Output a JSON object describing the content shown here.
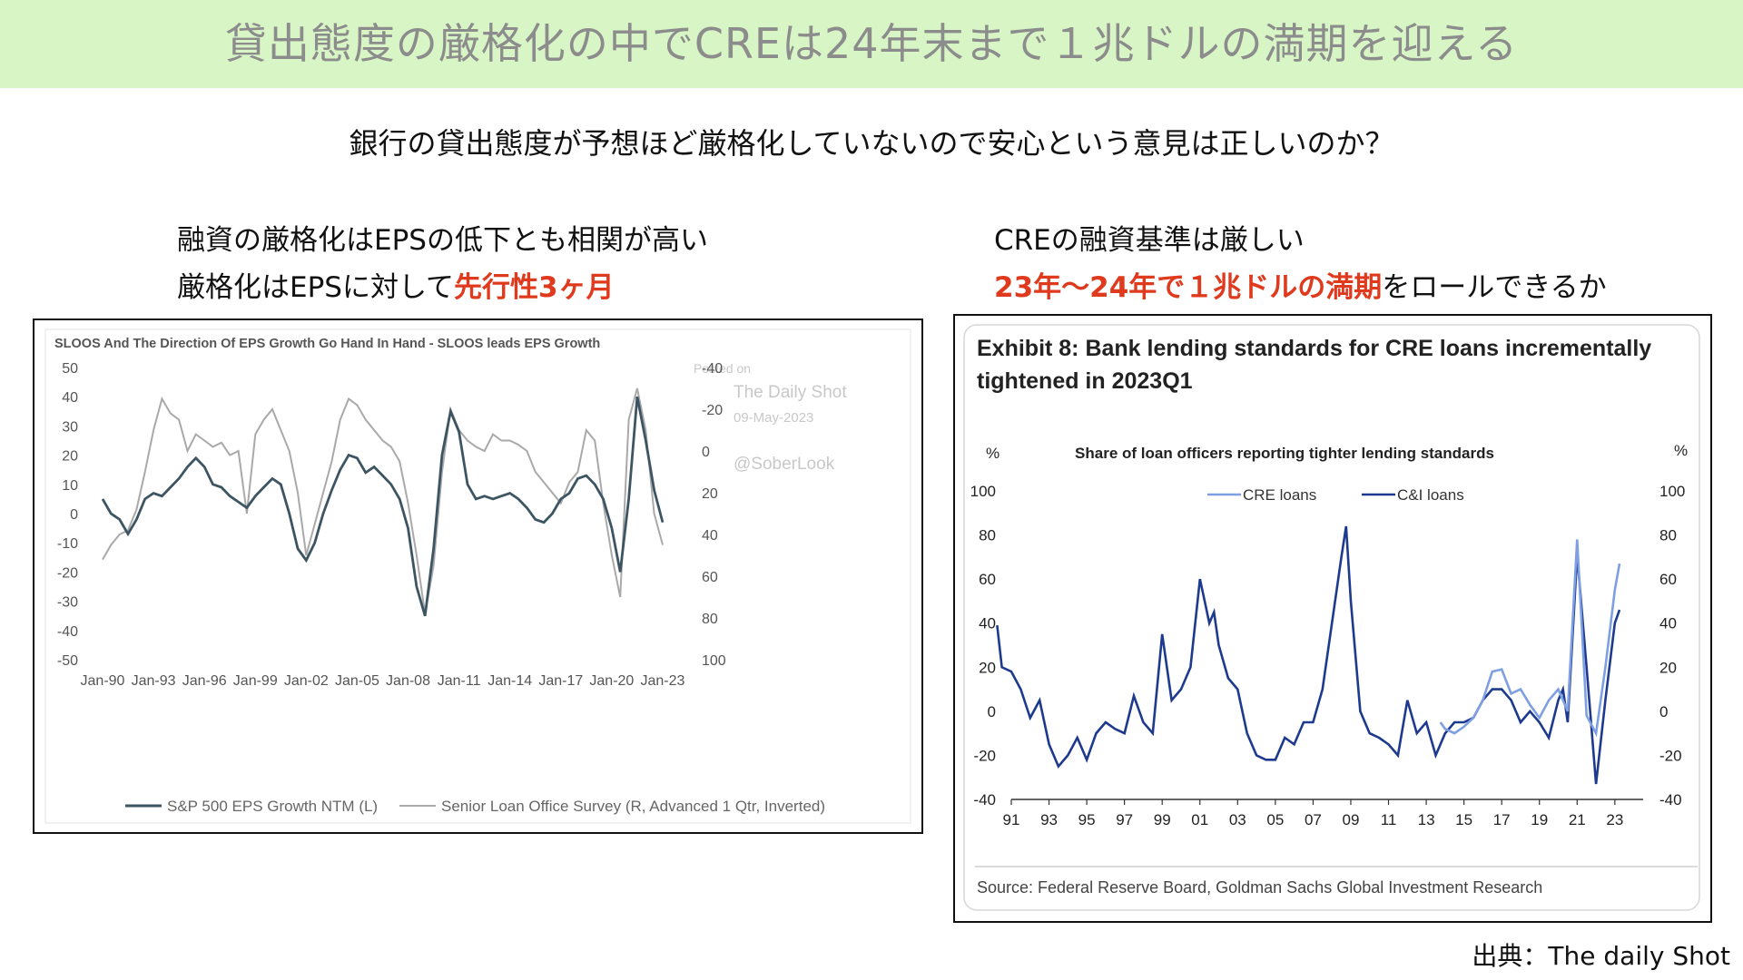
{
  "header": {
    "title": "貸出態度の厳格化の中でCREは24年末まで１兆ドルの満期を迎える",
    "question": "銀行の貸出態度が予想ほど厳格化していないので安心という意見は正しいのか？"
  },
  "left": {
    "caption_line1": "融資の厳格化はEPSの低下とも相関が高い",
    "caption_line2_prefix": "厳格化はEPSに対して",
    "caption_line2_highlight": "先行性3ヶ月"
  },
  "right": {
    "caption_line1": "CREの融資基準は厳しい",
    "caption_line2_highlight": "23年〜24年で１兆ドルの満期",
    "caption_line2_suffix": "をロールできるか"
  },
  "footer": {
    "source_note": "出典：The daily Shot"
  },
  "colors": {
    "accent_red": "#e03a1e",
    "title_bg": "#d8f5c6",
    "eps_line": "#3d5563",
    "sloos_line": "#a9a9a9",
    "cre_line": "#7f9fe3",
    "ci_line": "#1d3a8f"
  },
  "chart_data": [
    {
      "type": "line",
      "title": "SLOOS And The Direction Of EPS Growth Go Hand In Hand - SLOOS leads EPS Growth",
      "watermark": [
        "Posted on",
        "The Daily Shot",
        "09-May-2023",
        "@SoberLook"
      ],
      "x": [
        1990,
        1990.5,
        1991,
        1991.5,
        1992,
        1992.5,
        1993,
        1993.5,
        1994,
        1994.5,
        1995,
        1995.5,
        1996,
        1996.5,
        1997,
        1997.5,
        1998,
        1998.5,
        1999,
        1999.5,
        2000,
        2000.5,
        2001,
        2001.5,
        2002,
        2002.5,
        2003,
        2003.5,
        2004,
        2004.5,
        2005,
        2005.5,
        2006,
        2006.5,
        2007,
        2007.5,
        2008,
        2008.5,
        2009,
        2009.5,
        2010,
        2010.5,
        2011,
        2011.5,
        2012,
        2012.5,
        2013,
        2013.5,
        2014,
        2014.5,
        2015,
        2015.5,
        2016,
        2016.5,
        2017,
        2017.5,
        2018,
        2018.5,
        2019,
        2019.5,
        2020,
        2020.5,
        2021,
        2021.5,
        2022,
        2022.5,
        2023
      ],
      "x_tick_labels": [
        "Jan-90",
        "Jan-93",
        "Jan-96",
        "Jan-99",
        "Jan-02",
        "Jan-05",
        "Jan-08",
        "Jan-11",
        "Jan-14",
        "Jan-17",
        "Jan-20",
        "Jan-23"
      ],
      "x_ticks": [
        1990,
        1993,
        1996,
        1999,
        2002,
        2005,
        2008,
        2011,
        2014,
        2017,
        2020,
        2023
      ],
      "series": [
        {
          "name": "S&P 500 EPS Growth NTM (L)",
          "axis": "left",
          "values": [
            5,
            0,
            -2,
            -7,
            -2,
            5,
            7,
            6,
            9,
            12,
            16,
            19,
            16,
            10,
            9,
            6,
            4,
            2,
            6,
            9,
            12,
            10,
            0,
            -12,
            -16,
            -10,
            0,
            8,
            15,
            20,
            19,
            14,
            16,
            13,
            10,
            5,
            -5,
            -25,
            -35,
            -12,
            20,
            35,
            28,
            10,
            5,
            6,
            5,
            6,
            7,
            5,
            2,
            -2,
            -3,
            0,
            5,
            7,
            12,
            13,
            10,
            5,
            -5,
            -20,
            5,
            40,
            25,
            8,
            -3
          ]
        },
        {
          "name": "Senior Loan Office Survey (R, Advanced 1 Qtr, Inverted)",
          "axis": "right",
          "values": [
            52,
            45,
            40,
            38,
            28,
            10,
            -10,
            -25,
            -18,
            -15,
            0,
            -8,
            -5,
            -2,
            -4,
            2,
            0,
            30,
            -8,
            -15,
            -20,
            -10,
            0,
            20,
            50,
            35,
            20,
            5,
            -15,
            -25,
            -22,
            -15,
            -10,
            -5,
            -2,
            5,
            25,
            50,
            78,
            55,
            10,
            -20,
            -10,
            -5,
            -2,
            0,
            -8,
            -5,
            -5,
            -3,
            0,
            10,
            15,
            20,
            25,
            15,
            10,
            -10,
            -5,
            25,
            50,
            70,
            -15,
            -30,
            -10,
            30,
            45
          ]
        }
      ],
      "ylim_left": [
        -50,
        50
      ],
      "y_ticks_left": [
        50,
        40,
        30,
        20,
        10,
        0,
        -10,
        -20,
        -30,
        -40,
        -50
      ],
      "ylim_right": [
        -40,
        100
      ],
      "y_ticks_right": [
        -40,
        -20,
        0,
        20,
        40,
        60,
        80,
        100
      ],
      "right_axis_inverted": true,
      "legend": "bottom"
    },
    {
      "type": "line",
      "title": "Exhibit 8: Bank lending standards for CRE loans incrementally tightened in 2023Q1",
      "subtitle": "Share of loan officers reporting tighter lending standards",
      "ylabel_left": "%",
      "ylabel_right": "%",
      "source": "Source: Federal Reserve Board, Goldman Sachs Global Investment Research",
      "x_tick_labels": [
        "91",
        "93",
        "95",
        "97",
        "99",
        "01",
        "03",
        "05",
        "07",
        "09",
        "11",
        "13",
        "15",
        "17",
        "19",
        "21",
        "23"
      ],
      "x_ticks": [
        1991,
        1993,
        1995,
        1997,
        1999,
        2001,
        2003,
        2005,
        2007,
        2009,
        2011,
        2013,
        2015,
        2017,
        2019,
        2021,
        2023
      ],
      "ylim": [
        -40,
        100
      ],
      "y_ticks": [
        100,
        80,
        60,
        40,
        20,
        0,
        -20,
        -40
      ],
      "series": [
        {
          "name": "C&I loans",
          "x": [
            1990.25,
            1990.5,
            1991,
            1991.5,
            1992,
            1992.5,
            1993,
            1993.5,
            1994,
            1994.5,
            1995,
            1995.5,
            1996,
            1996.5,
            1997,
            1997.5,
            1998,
            1998.5,
            1999,
            1999.5,
            2000,
            2000.5,
            2001,
            2001.25,
            2001.5,
            2001.75,
            2002,
            2002.5,
            2003,
            2003.5,
            2004,
            2004.5,
            2005,
            2005.5,
            2006,
            2006.5,
            2007,
            2007.5,
            2008,
            2008.5,
            2008.75,
            2009,
            2009.5,
            2010,
            2010.5,
            2011,
            2011.5,
            2012,
            2012.5,
            2013,
            2013.5,
            2014,
            2014.5,
            2015,
            2015.5,
            2016,
            2016.5,
            2017,
            2017.5,
            2018,
            2018.5,
            2019,
            2019.5,
            2020,
            2020.25,
            2020.5,
            2021,
            2021.5,
            2022,
            2022.5,
            2023,
            2023.25
          ],
          "values": [
            39,
            20,
            18,
            10,
            -3,
            5,
            -15,
            -25,
            -20,
            -12,
            -22,
            -10,
            -5,
            -8,
            -10,
            7,
            -5,
            -10,
            35,
            5,
            10,
            20,
            60,
            50,
            40,
            45,
            30,
            15,
            10,
            -10,
            -20,
            -22,
            -22,
            -12,
            -15,
            -5,
            -5,
            10,
            40,
            70,
            84,
            50,
            0,
            -10,
            -12,
            -15,
            -20,
            5,
            -10,
            -5,
            -20,
            -10,
            -5,
            -5,
            -3,
            5,
            10,
            10,
            5,
            -5,
            0,
            -5,
            -12,
            5,
            10,
            -5,
            71,
            20,
            -33,
            5,
            40,
            46
          ]
        },
        {
          "name": "CRE loans",
          "x": [
            2013.75,
            2014,
            2014.5,
            2015,
            2015.5,
            2016,
            2016.5,
            2017,
            2017.5,
            2018,
            2018.5,
            2019,
            2019.5,
            2020,
            2020.5,
            2021,
            2021.5,
            2022,
            2022.5,
            2023,
            2023.25
          ],
          "values": [
            -5,
            -8,
            -10,
            -7,
            -3,
            5,
            18,
            19,
            8,
            10,
            3,
            -3,
            5,
            10,
            0,
            78,
            -2,
            -10,
            20,
            55,
            67
          ]
        }
      ],
      "legend": "top-center"
    }
  ]
}
